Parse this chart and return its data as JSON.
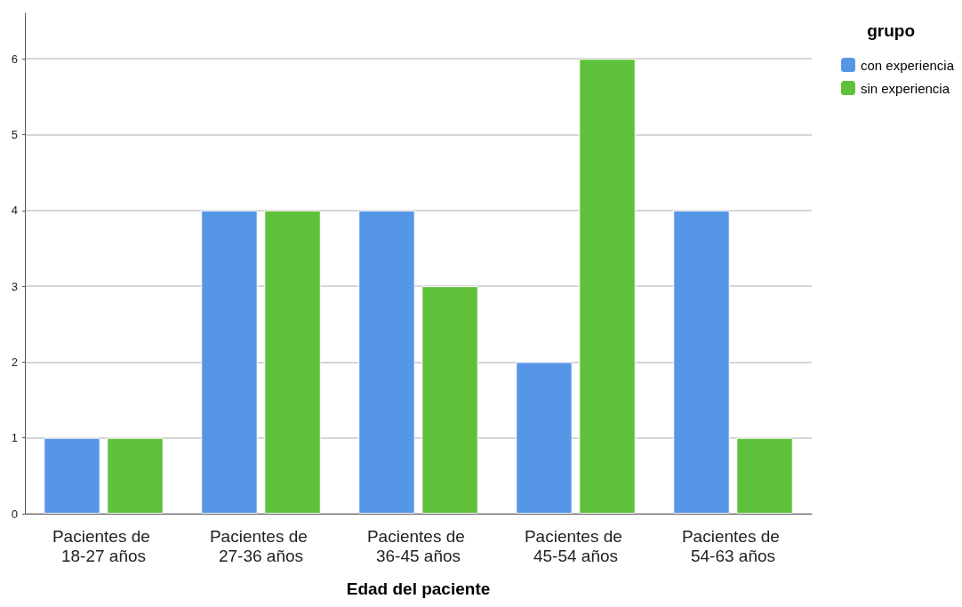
{
  "chart_data": {
    "type": "bar",
    "xlabel": "Edad del paciente",
    "legend_title": "grupo",
    "categories": [
      "Pacientes de 18-27 años",
      "Pacientes de 27-36 años",
      "Pacientes de 36-45 años",
      "Pacientes de 45-54 años",
      "Pacientes de 54-63 años"
    ],
    "series": [
      {
        "name": "con experiencia",
        "color": "#5596e6",
        "values": [
          1,
          4,
          4,
          2,
          4
        ]
      },
      {
        "name": "sin experiencia",
        "color": "#5fc13b",
        "values": [
          1,
          4,
          3,
          6,
          1
        ]
      }
    ],
    "ylim": [
      0,
      6.6
    ],
    "yticks": [
      0,
      1,
      2,
      3,
      4,
      5,
      6
    ],
    "grid": "y",
    "legend": "top right"
  }
}
